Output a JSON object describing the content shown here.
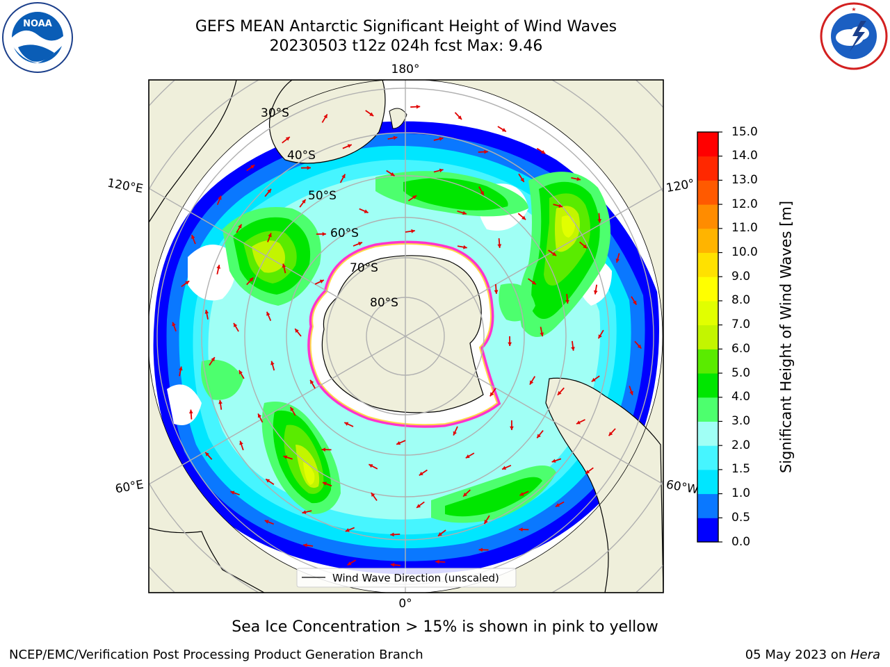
{
  "title": {
    "line1": "GEFS MEAN Antarctic Significant Height of Wind Waves",
    "line2": "20230503 t12z 024h fcst   Max: 9.46"
  },
  "logos": {
    "noaa": {
      "text": "NOAA",
      "ring_text": "NATIONAL OCEANIC AND ATMOSPHERIC ADMINISTRATION · U.S. DEPARTMENT OF COMMERCE"
    },
    "nws": {
      "ring_text": "NATIONAL WEATHER SERVICE"
    }
  },
  "map": {
    "projection": "south polar stereographic",
    "longitude_labels": {
      "top": "180°",
      "left_upper": "120°E",
      "right_upper": "120°",
      "left_lower": "60°E",
      "right_lower": "60°W",
      "bottom": "0°"
    },
    "latitude_labels": [
      "30°S",
      "40°S",
      "50°S",
      "60°S",
      "70°S",
      "80°S"
    ],
    "legend": "Wind Wave Direction (unscaled)",
    "colors": {
      "land": "#efefdb",
      "ocean_no_data": "#ffffff",
      "sea_ice": "#ff33cc",
      "arrow": "#ff0000",
      "grid": "#b0b0b0"
    }
  },
  "colorbar": {
    "label": "Significant Height of Wind Waves [m]",
    "ticks": [
      "0.0",
      "0.5",
      "1.0",
      "1.5",
      "2.0",
      "3.0",
      "4.0",
      "5.0",
      "6.0",
      "7.0",
      "8.0",
      "9.0",
      "10.0",
      "11.0",
      "12.0",
      "13.0",
      "14.0",
      "15.0"
    ],
    "colors": [
      "#0000ff",
      "#0a78ff",
      "#00e6ff",
      "#46f5ff",
      "#a0fff5",
      "#4dff6e",
      "#00e600",
      "#5aeb00",
      "#c3f500",
      "#e1ff00",
      "#ffff00",
      "#ffe100",
      "#ffb400",
      "#ff8c00",
      "#ff5a00",
      "#ff2800",
      "#ff0000"
    ]
  },
  "chart_data": {
    "type": "map",
    "title": "GEFS MEAN Antarctic Significant Height of Wind Waves",
    "subtitle": "20230503 t12z 024h fcst   Max: 9.46",
    "variable": "Significant Height of Wind Waves [m]",
    "max_value": 9.46,
    "scale_range": [
      0.0,
      15.0
    ]
  },
  "note": "Sea Ice Concentration > 15% is shown in pink to yellow",
  "footer": {
    "left": "NCEP/EMC/Verification Post Processing Product Generation Branch",
    "date": "05 May 2023 on ",
    "host": "Hera"
  }
}
